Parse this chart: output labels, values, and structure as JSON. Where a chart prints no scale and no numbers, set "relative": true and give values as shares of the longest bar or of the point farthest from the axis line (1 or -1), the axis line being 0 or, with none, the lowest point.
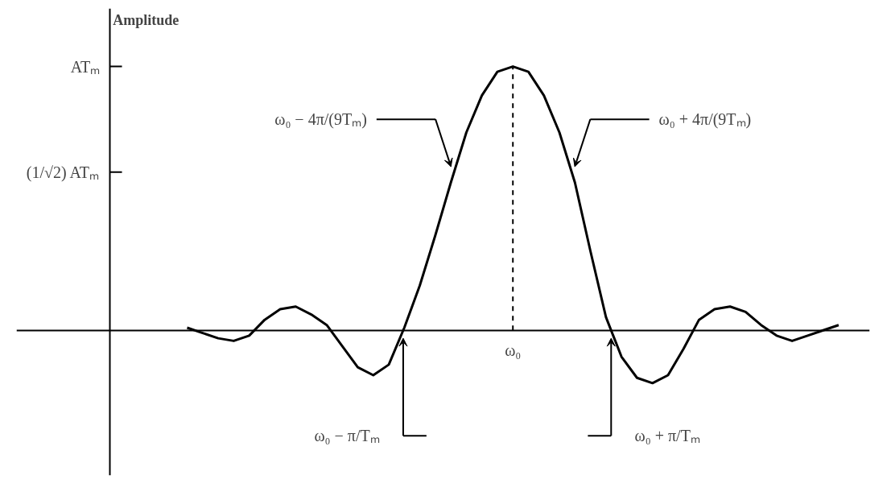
{
  "chart_data": {
    "type": "line",
    "relative": true,
    "ylabel": "Amplitude",
    "categories": [
      null,
      null,
      null,
      null,
      null,
      null,
      null,
      null,
      null,
      null,
      null,
      null,
      null,
      null,
      null,
      null,
      null,
      null,
      null,
      null,
      null,
      null,
      null,
      null,
      null,
      null,
      null,
      null,
      null,
      null,
      null,
      null,
      null,
      null,
      null,
      null,
      null,
      null,
      null,
      null,
      null,
      null,
      null
    ],
    "series": [
      {
        "color": "#000000",
        "values": [
          0.01,
          -0.01,
          -0.03,
          -0.04,
          -0.02,
          0.04,
          0.08,
          0.09,
          0.06,
          0.02,
          -0.06,
          -0.14,
          -0.17,
          -0.13,
          0.01,
          0.17,
          0.36,
          0.56,
          0.75,
          0.89,
          0.98,
          1.0,
          0.98,
          0.89,
          0.75,
          0.56,
          0.3,
          0.05,
          -0.1,
          -0.18,
          -0.2,
          -0.17,
          -0.07,
          0.04,
          0.08,
          0.09,
          0.07,
          0.02,
          -0.02,
          -0.04,
          -0.02,
          0.0,
          0.02
        ]
      }
    ],
    "ref_lines": [
      {
        "axis": "x",
        "value": "ω₀",
        "line_style": "dashed"
      },
      {
        "axis": "y",
        "value": 1.0,
        "label": "ATₘ"
      },
      {
        "axis": "y",
        "value": 0.6,
        "label": "(1/√2) ATₘ"
      }
    ],
    "annotations": [
      "ω₀ − 4π/(9Tₘ)",
      "ω₀ + 4π/(9Tₘ)",
      "ω₀ − π/Tₘ",
      "ω₀ + π/Tₘ"
    ],
    "marker": "none",
    "line_style": "solid"
  }
}
